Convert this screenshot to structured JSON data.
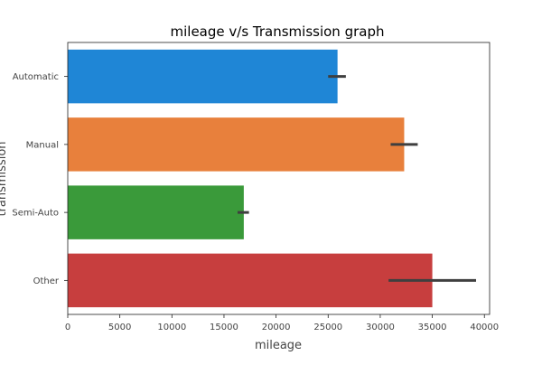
{
  "chart_data": {
    "type": "bar",
    "orientation": "horizontal",
    "title": "mileage v/s Transmission graph",
    "xlabel": "mileage",
    "ylabel": "transmission",
    "categories": [
      "Automatic",
      "Manual",
      "Semi-Auto",
      "Other"
    ],
    "values": [
      25900,
      32300,
      16900,
      35000
    ],
    "error_bars": [
      [
        25000,
        26700
      ],
      [
        31000,
        33600
      ],
      [
        16300,
        17400
      ],
      [
        30800,
        39200
      ]
    ],
    "xlim": [
      0,
      40500
    ],
    "xticks": [
      0,
      5000,
      10000,
      15000,
      20000,
      25000,
      30000,
      35000,
      40000
    ],
    "xtick_labels": [
      "0",
      "5000",
      "10000",
      "15000",
      "20000",
      "25000",
      "30000",
      "35000",
      "40000"
    ],
    "colors": [
      "#1f86d6",
      "#e8803c",
      "#3a9a3a",
      "#c73e3e"
    ],
    "errorbar_color": "#3f3f3f",
    "grid": false,
    "legend": false
  }
}
